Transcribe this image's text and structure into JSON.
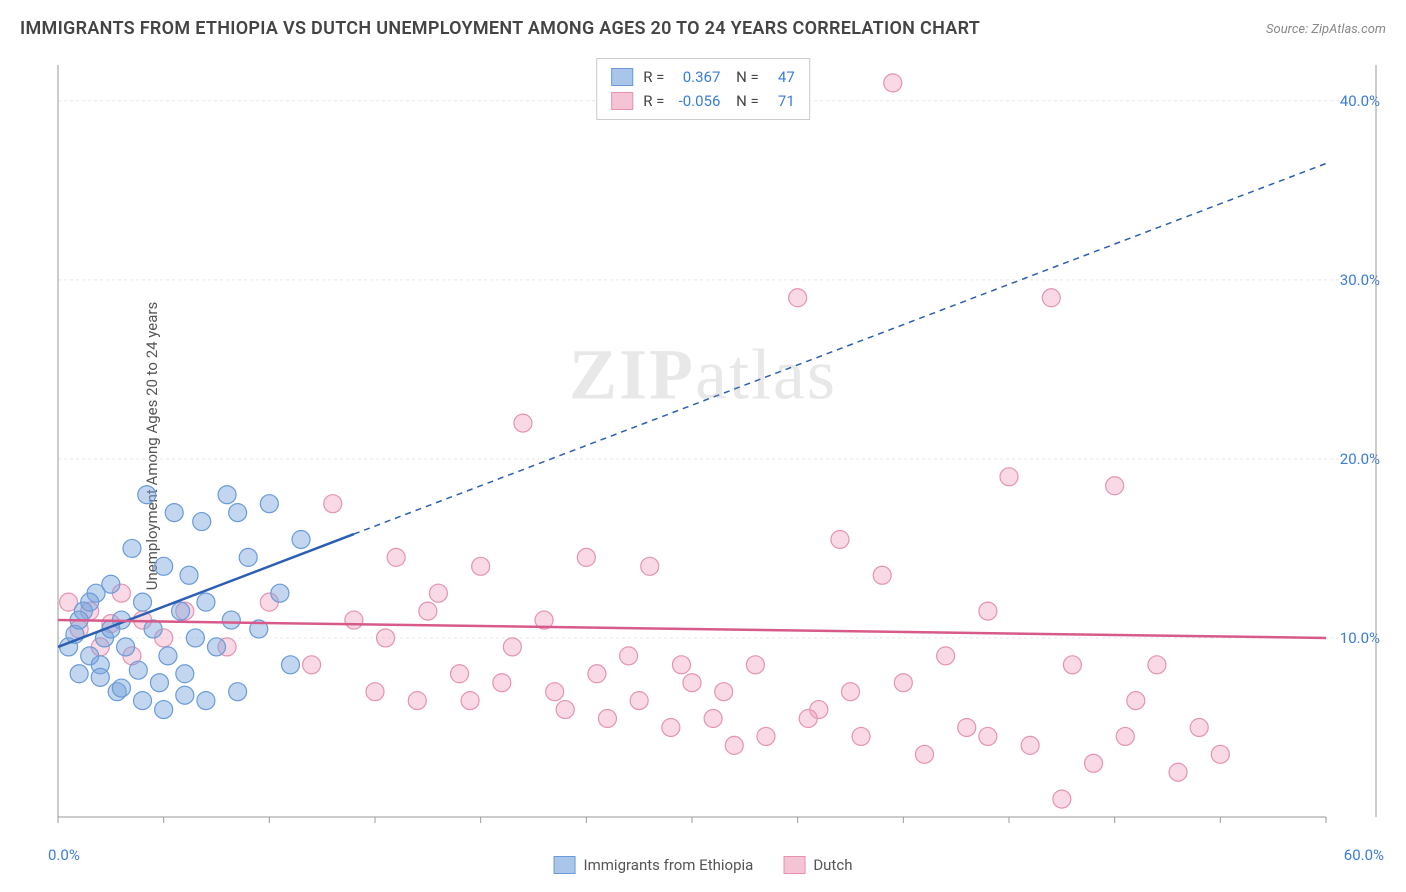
{
  "title": "IMMIGRANTS FROM ETHIOPIA VS DUTCH UNEMPLOYMENT AMONG AGES 20 TO 24 YEARS CORRELATION CHART",
  "source": "Source: ZipAtlas.com",
  "y_axis_label": "Unemployment Among Ages 20 to 24 years",
  "watermark": "ZIPatlas",
  "chart": {
    "type": "scatter_with_regression",
    "background_color": "#ffffff",
    "grid_color": "#e8e8e8",
    "axis_color": "#999999",
    "tick_color": "#999999",
    "xlim": [
      0,
      60
    ],
    "ylim": [
      0,
      42
    ],
    "x_ticks_pct": [
      "0.0%",
      "60.0%"
    ],
    "y_ticks": [
      10,
      20,
      30,
      40
    ],
    "y_tick_labels": [
      "10.0%",
      "20.0%",
      "30.0%",
      "40.0%"
    ],
    "y_tick_color": "#3b7dd8",
    "x_tick_color": "#3b7dd8",
    "marker_radius": 9,
    "marker_stroke_width": 1.2,
    "series": [
      {
        "name": "Immigrants from Ethiopia",
        "key": "ethiopia",
        "fill": "rgba(120,165,220,0.45)",
        "stroke": "#6a9bd8",
        "swatch_fill": "#a9c6ea",
        "swatch_stroke": "#6a9bd8",
        "R": "0.367",
        "N": "47",
        "regression": {
          "x1": 0,
          "y1": 9.5,
          "x2": 60,
          "y2": 36.5,
          "solid_until_x": 14,
          "color": "#2c5fb3",
          "width": 2.5,
          "dash": "6,5"
        },
        "points": [
          [
            0.5,
            9.5
          ],
          [
            0.8,
            10.2
          ],
          [
            1.0,
            8.0
          ],
          [
            1.2,
            11.5
          ],
          [
            1.5,
            9.0
          ],
          [
            1.8,
            12.5
          ],
          [
            2.0,
            8.5
          ],
          [
            2.2,
            10.0
          ],
          [
            2.5,
            13.0
          ],
          [
            2.8,
            7.0
          ],
          [
            3.0,
            11.0
          ],
          [
            3.2,
            9.5
          ],
          [
            3.5,
            15.0
          ],
          [
            3.8,
            8.2
          ],
          [
            4.0,
            12.0
          ],
          [
            4.2,
            18.0
          ],
          [
            4.5,
            10.5
          ],
          [
            4.8,
            7.5
          ],
          [
            5.0,
            14.0
          ],
          [
            5.2,
            9.0
          ],
          [
            5.5,
            17.0
          ],
          [
            5.8,
            11.5
          ],
          [
            6.0,
            8.0
          ],
          [
            6.2,
            13.5
          ],
          [
            6.5,
            10.0
          ],
          [
            6.8,
            16.5
          ],
          [
            7.0,
            12.0
          ],
          [
            7.5,
            9.5
          ],
          [
            8.0,
            18.0
          ],
          [
            8.2,
            11.0
          ],
          [
            8.5,
            7.0
          ],
          [
            9.0,
            14.5
          ],
          [
            9.5,
            10.5
          ],
          [
            10.0,
            17.5
          ],
          [
            10.5,
            12.5
          ],
          [
            11.0,
            8.5
          ],
          [
            11.5,
            15.5
          ],
          [
            4.0,
            6.5
          ],
          [
            5.0,
            6.0
          ],
          [
            6.0,
            6.8
          ],
          [
            3.0,
            7.2
          ],
          [
            2.0,
            7.8
          ],
          [
            7.0,
            6.5
          ],
          [
            8.5,
            17.0
          ],
          [
            1.0,
            11.0
          ],
          [
            1.5,
            12.0
          ],
          [
            2.5,
            10.5
          ]
        ]
      },
      {
        "name": "Dutch",
        "key": "dutch",
        "fill": "rgba(240,160,190,0.4)",
        "stroke": "#e593b2",
        "swatch_fill": "#f5c4d4",
        "swatch_stroke": "#e593b2",
        "R": "-0.056",
        "N": "71",
        "regression": {
          "x1": 0,
          "y1": 11.0,
          "x2": 60,
          "y2": 10.0,
          "solid_until_x": 60,
          "color": "#d85a8a",
          "width": 2.5,
          "dash": null
        },
        "points": [
          [
            0.5,
            12.0
          ],
          [
            1.0,
            10.5
          ],
          [
            1.5,
            11.5
          ],
          [
            2.0,
            9.5
          ],
          [
            2.5,
            10.8
          ],
          [
            3.0,
            12.5
          ],
          [
            3.5,
            9.0
          ],
          [
            4.0,
            11.0
          ],
          [
            5.0,
            10.0
          ],
          [
            6.0,
            11.5
          ],
          [
            8.0,
            9.5
          ],
          [
            10.0,
            12.0
          ],
          [
            12.0,
            8.5
          ],
          [
            13.0,
            17.5
          ],
          [
            14.0,
            11.0
          ],
          [
            15.0,
            7.0
          ],
          [
            16.0,
            14.5
          ],
          [
            17.0,
            6.5
          ],
          [
            18.0,
            12.5
          ],
          [
            19.0,
            8.0
          ],
          [
            20.0,
            14.0
          ],
          [
            21.0,
            7.5
          ],
          [
            22.0,
            22.0
          ],
          [
            23.0,
            11.0
          ],
          [
            24.0,
            6.0
          ],
          [
            25.0,
            14.5
          ],
          [
            26.0,
            5.5
          ],
          [
            27.0,
            9.0
          ],
          [
            28.0,
            14.0
          ],
          [
            29.0,
            5.0
          ],
          [
            30.0,
            7.5
          ],
          [
            31.0,
            5.5
          ],
          [
            32.0,
            4.0
          ],
          [
            33.0,
            8.5
          ],
          [
            35.0,
            29.0
          ],
          [
            36.0,
            6.0
          ],
          [
            37.0,
            15.5
          ],
          [
            38.0,
            4.5
          ],
          [
            39.0,
            13.5
          ],
          [
            40.0,
            7.5
          ],
          [
            41.0,
            3.5
          ],
          [
            42.0,
            9.0
          ],
          [
            43.0,
            5.0
          ],
          [
            44.0,
            11.5
          ],
          [
            45.0,
            19.0
          ],
          [
            46.0,
            4.0
          ],
          [
            47.0,
            29.0
          ],
          [
            48.0,
            8.5
          ],
          [
            49.0,
            3.0
          ],
          [
            50.0,
            18.5
          ],
          [
            51.0,
            6.5
          ],
          [
            52.0,
            8.5
          ],
          [
            53.0,
            2.5
          ],
          [
            54.0,
            5.0
          ],
          [
            55.0,
            3.5
          ],
          [
            47.5,
            1.0
          ],
          [
            15.5,
            10.0
          ],
          [
            17.5,
            11.5
          ],
          [
            19.5,
            6.5
          ],
          [
            21.5,
            9.5
          ],
          [
            23.5,
            7.0
          ],
          [
            25.5,
            8.0
          ],
          [
            27.5,
            6.5
          ],
          [
            29.5,
            8.5
          ],
          [
            31.5,
            7.0
          ],
          [
            33.5,
            4.5
          ],
          [
            35.5,
            5.5
          ],
          [
            37.5,
            7.0
          ],
          [
            44.0,
            4.5
          ],
          [
            50.5,
            4.5
          ],
          [
            39.5,
            41.0
          ]
        ]
      }
    ]
  },
  "legend_labels": {
    "R": "R =",
    "N": "N ="
  }
}
